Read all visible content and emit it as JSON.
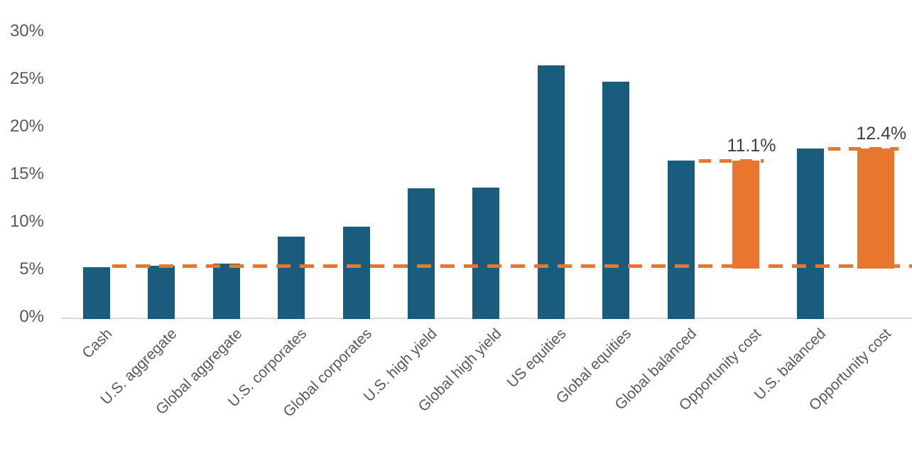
{
  "chart_data": {
    "type": "bar",
    "title": "",
    "xlabel": "",
    "ylabel": "",
    "grid": false,
    "legend": "none",
    "y_axis": {
      "min": 0,
      "max": 30,
      "tick_step": 5,
      "ticks": [
        {
          "value": 0,
          "label": "0%"
        },
        {
          "value": 5,
          "label": "5%"
        },
        {
          "value": 10,
          "label": "10%"
        },
        {
          "value": 15,
          "label": "15%"
        },
        {
          "value": 20,
          "label": "20%"
        },
        {
          "value": 25,
          "label": "25%"
        },
        {
          "value": 30,
          "label": "30%"
        }
      ]
    },
    "categories": [
      "Cash",
      "U.S. aggregate",
      "Global aggregate",
      "U.S. corporates",
      "Global corporates",
      "U.S. high yield",
      "Global high yield",
      "US equities",
      "Global equities",
      "Global balanced",
      "Opportunity cost",
      "U.S. balanced",
      "Opportunity cost"
    ],
    "bars": [
      {
        "category": "Cash",
        "value": 5.2,
        "base": 0,
        "color": "teal"
      },
      {
        "category": "U.S. aggregate",
        "value": 5.4,
        "base": 0,
        "color": "teal"
      },
      {
        "category": "Global aggregate",
        "value": 5.6,
        "base": 0,
        "color": "teal"
      },
      {
        "category": "U.S. corporates",
        "value": 8.4,
        "base": 0,
        "color": "teal"
      },
      {
        "category": "Global corporates",
        "value": 9.5,
        "base": 0,
        "color": "teal"
      },
      {
        "category": "U.S. high yield",
        "value": 13.5,
        "base": 0,
        "color": "teal"
      },
      {
        "category": "Global high yield",
        "value": 13.6,
        "base": 0,
        "color": "teal"
      },
      {
        "category": "US equities",
        "value": 26.4,
        "base": 0,
        "color": "teal"
      },
      {
        "category": "Global equities",
        "value": 24.7,
        "base": 0,
        "color": "teal"
      },
      {
        "category": "Global balanced",
        "value": 16.4,
        "base": 0,
        "color": "teal"
      },
      {
        "category": "Opportunity cost",
        "value": 11.1,
        "base": 5.3,
        "color": "orange",
        "data_label": "11.1%",
        "top_dash": true
      },
      {
        "category": "U.S. balanced",
        "value": 17.7,
        "base": 0,
        "color": "teal"
      },
      {
        "category": "Opportunity cost",
        "value": 12.4,
        "base": 5.3,
        "color": "orange",
        "data_label": "12.4%",
        "top_dash": true
      }
    ],
    "reference_line": {
      "value": 5.3,
      "style": "dashed",
      "color": "#e8762c"
    },
    "colors": {
      "teal": "#1a5c7e",
      "orange": "#e8762c",
      "axis_line": "#d9d9d9",
      "tick_label": "#595959",
      "data_label": "#404040"
    }
  }
}
